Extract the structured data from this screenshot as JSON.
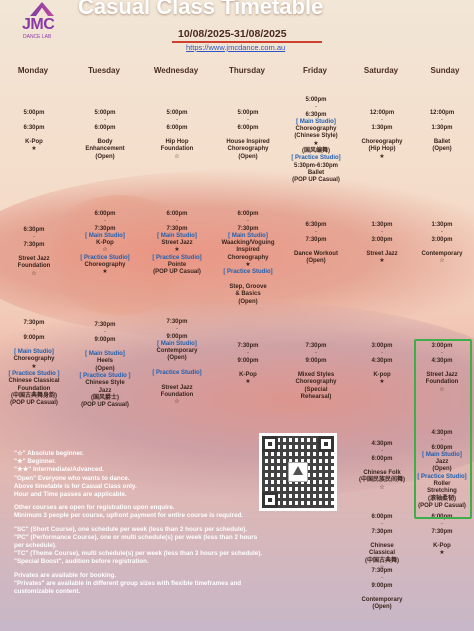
{
  "header": {
    "logo_text": "JMC",
    "logo_sub": "DANCE LAB",
    "title": "Casual Class Timetable",
    "date_range": "10/08/2025-31/08/2025",
    "url": "https://www.jmcdance.com.au"
  },
  "days": [
    "Monday",
    "Tuesday",
    "Wednesday",
    "Thursday",
    "Friday",
    "Saturday",
    "Sunday"
  ],
  "columns": [
    {
      "day": "Monday",
      "blocks": [
        {
          "lines": [
            [
              "t",
              "5:00pm"
            ],
            [
              "dash",
              "-"
            ],
            [
              "t",
              "6:30pm"
            ],
            [
              "g",
              ""
            ],
            [
              "cls",
              "K-Pop"
            ],
            [
              "sym",
              "★"
            ]
          ]
        },
        {
          "lines": [
            [
              "t",
              "6:30pm"
            ],
            [
              "dash",
              "-"
            ],
            [
              "t",
              "7:30pm"
            ],
            [
              "g",
              ""
            ],
            [
              "cls",
              "Street Jazz"
            ],
            [
              "cls",
              "Foundation"
            ],
            [
              "sym",
              "☆"
            ]
          ]
        },
        {
          "lines": [
            [
              "t",
              "7:30pm"
            ],
            [
              "dash",
              "-"
            ],
            [
              "t",
              "9:00pm"
            ],
            [
              "g",
              ""
            ],
            [
              "st",
              "[ Main Studio]"
            ],
            [
              "cls",
              "Choreography"
            ],
            [
              "sym",
              "★"
            ],
            [
              "st",
              "[ Practice Studio ]"
            ],
            [
              "cls",
              "Chinese Classical"
            ],
            [
              "cls",
              "Foundation"
            ],
            [
              "cls",
              "(中国古典舞身韵)"
            ],
            [
              "cls",
              "(POP UP Casual)"
            ]
          ]
        }
      ]
    },
    {
      "day": "Tuesday",
      "blocks": [
        {
          "lines": [
            [
              "t",
              "5:00pm"
            ],
            [
              "dash",
              "-"
            ],
            [
              "t",
              "6:00pm"
            ],
            [
              "g",
              ""
            ],
            [
              "cls",
              "Body"
            ],
            [
              "cls",
              "Enhancement"
            ],
            [
              "cls",
              "(Open)"
            ]
          ]
        },
        {
          "lines": [
            [
              "t",
              "6:00pm"
            ],
            [
              "dash",
              "-"
            ],
            [
              "t",
              "7:30pm"
            ],
            [
              "st",
              "[ Main Studio]"
            ],
            [
              "cls",
              "K-Pop"
            ],
            [
              "sym",
              "☆"
            ],
            [
              "st",
              "[ Practice Studio]"
            ],
            [
              "cls",
              "Choreography"
            ],
            [
              "sym",
              "★"
            ]
          ]
        },
        {
          "lines": [
            [
              "t",
              "7:30pm"
            ],
            [
              "dash",
              "-"
            ],
            [
              "t",
              "9:00pm"
            ],
            [
              "g",
              ""
            ],
            [
              "st",
              "[ Main Studio]"
            ],
            [
              "cls",
              "Heels"
            ],
            [
              "cls",
              "(Open)"
            ],
            [
              "st",
              "[ Practice Studio ]"
            ],
            [
              "cls",
              "Chinese Style"
            ],
            [
              "cls",
              "Jazz"
            ],
            [
              "cls",
              "(国风爵士)"
            ],
            [
              "cls",
              "(POP UP Casual)"
            ]
          ]
        }
      ]
    },
    {
      "day": "Wednesday",
      "blocks": [
        {
          "lines": [
            [
              "t",
              "5:00pm"
            ],
            [
              "dash",
              "-"
            ],
            [
              "t",
              "6:00pm"
            ],
            [
              "g",
              ""
            ],
            [
              "cls",
              "Hip Hop"
            ],
            [
              "cls",
              "Foundation"
            ],
            [
              "sym",
              "☆"
            ]
          ]
        },
        {
          "lines": [
            [
              "t",
              "6:00pm"
            ],
            [
              "dash",
              "-"
            ],
            [
              "t",
              "7:30pm"
            ],
            [
              "st",
              "[ Main Studio]"
            ],
            [
              "cls",
              "Street Jazz"
            ],
            [
              "sym",
              "★"
            ],
            [
              "st",
              "[ Practice Studio]"
            ],
            [
              "cls",
              "Pointe"
            ],
            [
              "cls",
              "(POP UP Casual)"
            ]
          ]
        },
        {
          "lines": [
            [
              "t",
              "7:30pm"
            ],
            [
              "dash",
              "-"
            ],
            [
              "t",
              "9:00pm"
            ],
            [
              "st",
              "[ Main Studio]"
            ],
            [
              "cls",
              "Contemporary"
            ],
            [
              "cls",
              "(Open)"
            ],
            [
              "g",
              ""
            ],
            [
              "st",
              "[ Practice Studio]"
            ],
            [
              "g",
              ""
            ],
            [
              "cls",
              "Street Jazz"
            ],
            [
              "cls",
              "Foundation"
            ],
            [
              "sym",
              "☆"
            ]
          ]
        }
      ]
    },
    {
      "day": "Thursday",
      "blocks": [
        {
          "lines": [
            [
              "t",
              "5:00pm"
            ],
            [
              "dash",
              "-"
            ],
            [
              "t",
              "6:00pm"
            ],
            [
              "g",
              ""
            ],
            [
              "cls",
              "House Inspired"
            ],
            [
              "cls",
              "Choreography"
            ],
            [
              "cls",
              "(Open)"
            ]
          ]
        },
        {
          "lines": [
            [
              "t",
              "6:00pm"
            ],
            [
              "dash",
              "-"
            ],
            [
              "t",
              "7:30pm"
            ],
            [
              "st",
              "[ Main Studio]"
            ],
            [
              "cls",
              "Waacking/Voguing"
            ],
            [
              "cls",
              "Inspired"
            ],
            [
              "cls",
              "Choreography"
            ],
            [
              "sym",
              "★"
            ],
            [
              "st",
              "[ Practice Studio]"
            ],
            [
              "g",
              ""
            ],
            [
              "cls",
              "Step,   Groove"
            ],
            [
              "cls",
              "& Basics"
            ],
            [
              "cls",
              "(Open)"
            ]
          ]
        },
        {
          "lines": [
            [
              "t",
              "7:30pm"
            ],
            [
              "dash",
              "-"
            ],
            [
              "t",
              "9:00pm"
            ],
            [
              "g",
              ""
            ],
            [
              "cls",
              "K-Pop"
            ],
            [
              "sym",
              "★"
            ]
          ]
        }
      ]
    },
    {
      "day": "Friday",
      "blocks": [
        {
          "lines": [
            [
              "t",
              "5:00pm"
            ],
            [
              "dash",
              "-"
            ],
            [
              "t",
              "6:30pm"
            ],
            [
              "st",
              "[ Main Studio]"
            ],
            [
              "cls",
              "Choreography"
            ],
            [
              "cls",
              "(Chinese Style)"
            ],
            [
              "sym",
              "★"
            ],
            [
              "cls",
              "(国风编舞)"
            ],
            [
              "st",
              "[ Practice Studio]"
            ],
            [
              "cls",
              "5:30pm-6:30pm"
            ],
            [
              "cls",
              "Ballet"
            ],
            [
              "cls",
              "(POP UP Casual)"
            ]
          ]
        },
        {
          "lines": [
            [
              "t",
              "6:30pm"
            ],
            [
              "dash",
              "-"
            ],
            [
              "t",
              "7:30pm"
            ],
            [
              "g",
              ""
            ],
            [
              "cls",
              "Dance Workout"
            ],
            [
              "cls",
              "(Open)"
            ]
          ]
        },
        {
          "lines": [
            [
              "t",
              "7:30pm"
            ],
            [
              "dash",
              "-"
            ],
            [
              "t",
              "9:00pm"
            ],
            [
              "g",
              ""
            ],
            [
              "cls",
              "Mixed Styles"
            ],
            [
              "cls",
              "Choreography"
            ],
            [
              "cls",
              "(Special"
            ],
            [
              "cls",
              "Rehearsal)"
            ]
          ]
        }
      ]
    },
    {
      "day": "Saturday",
      "blocks": [
        {
          "lines": [
            [
              "t",
              "12:00pm"
            ],
            [
              "dash",
              "-"
            ],
            [
              "t",
              "1:30pm"
            ],
            [
              "g",
              ""
            ],
            [
              "cls",
              "Choreography"
            ],
            [
              "cls",
              "(Hip Hop)"
            ],
            [
              "sym",
              "★"
            ]
          ]
        },
        {
          "lines": [
            [
              "t",
              "1:30pm"
            ],
            [
              "dash",
              "-"
            ],
            [
              "t",
              "3:00pm"
            ],
            [
              "g",
              ""
            ],
            [
              "cls",
              "Street Jazz"
            ],
            [
              "sym",
              "★"
            ]
          ]
        },
        {
          "lines": [
            [
              "t",
              "3:00pm"
            ],
            [
              "dash",
              "-"
            ],
            [
              "t",
              "4:30pm"
            ],
            [
              "g",
              ""
            ],
            [
              "cls",
              "K-pop"
            ],
            [
              "sym",
              "★"
            ]
          ]
        },
        {
          "lines": [
            [
              "t",
              "4:30pm"
            ],
            [
              "dash",
              "-"
            ],
            [
              "t",
              "6:00pm"
            ],
            [
              "g",
              ""
            ],
            [
              "cls",
              "Chinese Folk"
            ],
            [
              "cls",
              "(中国民族民间舞)"
            ],
            [
              "sym",
              "☆"
            ]
          ]
        },
        {
          "lines": [
            [
              "t",
              "6:00pm"
            ],
            [
              "dash",
              "-"
            ],
            [
              "t",
              "7:30pm"
            ],
            [
              "g",
              ""
            ],
            [
              "cls",
              "Chinese"
            ],
            [
              "cls",
              "Classical"
            ],
            [
              "cls",
              "(中国古典舞)"
            ],
            [
              "sym",
              "☆"
            ]
          ]
        },
        {
          "lines": [
            [
              "t",
              "7:30pm"
            ],
            [
              "dash",
              "-"
            ],
            [
              "t",
              "9:00pm"
            ],
            [
              "g",
              ""
            ],
            [
              "cls",
              "Contemporary"
            ],
            [
              "cls",
              "(Open)"
            ]
          ]
        }
      ]
    },
    {
      "day": "Sunday",
      "blocks": [
        {
          "lines": [
            [
              "t",
              "12:00pm"
            ],
            [
              "dash",
              "-"
            ],
            [
              "t",
              "1:30pm"
            ],
            [
              "g",
              ""
            ],
            [
              "cls",
              "Ballet"
            ],
            [
              "cls",
              "(Open)"
            ]
          ]
        },
        {
          "lines": [
            [
              "t",
              "1:30pm"
            ],
            [
              "dash",
              "-"
            ],
            [
              "t",
              "3:00pm"
            ],
            [
              "g",
              ""
            ],
            [
              "cls",
              "Contemporary"
            ],
            [
              "sym",
              "☆"
            ]
          ]
        },
        {
          "lines": [
            [
              "t",
              "3:00pm"
            ],
            [
              "dash",
              "-"
            ],
            [
              "t",
              "4:30pm"
            ],
            [
              "g",
              ""
            ],
            [
              "cls",
              "Street Jazz"
            ],
            [
              "cls",
              "Foundation"
            ],
            [
              "sym",
              "☆"
            ]
          ]
        },
        {
          "lines": [
            [
              "t",
              "4:30pm"
            ],
            [
              "dash",
              "-"
            ],
            [
              "t",
              "6:00pm"
            ],
            [
              "st",
              "[ Main Studio]"
            ],
            [
              "cls",
              "Jazz"
            ],
            [
              "cls",
              "(Open)"
            ],
            [
              "st",
              "[ Practice Studio]"
            ],
            [
              "cls",
              "Roller"
            ],
            [
              "cls",
              "Stretching"
            ],
            [
              "cls",
              "(滚轴柔韧)"
            ],
            [
              "cls",
              "(POP UP Casual)"
            ]
          ]
        },
        {
          "lines": [
            [
              "t",
              "6:00pm"
            ],
            [
              "dash",
              "-"
            ],
            [
              "t",
              "7:30pm"
            ],
            [
              "g",
              ""
            ],
            [
              "cls",
              "K-Pop"
            ],
            [
              "sym",
              "★"
            ]
          ]
        }
      ]
    }
  ],
  "legend": [
    "\"☆\" Absolute beginner.",
    "\"★\" Beginner.",
    "\"★★\" Intermediate/Advanced.",
    "\"Open\" Everyone who wants to dance.",
    "Above timetable is for Casual Class only.",
    "Hour and Time passes are applicable.",
    "",
    "Other courses are open for registration upon enquire.",
    "Minimum 3 people per course, upfront payment for entire course is required.",
    "",
    "\"SC\" (Short Course), one schedule per week (less than 2 hours per schedule).",
    "\"PC\" (Performance Course), one or multi schedule(s) per week (less than 2 hours per schedule).",
    "\"TC\" (Theme Course), multi schedule(s) per week (less than 3 hours per schedule).",
    "\"Special Boost\", audition before registration.",
    "",
    "Privates are available for booking.",
    "\"Privates\" are available in different group sizes with flexible timeframes and customizable content."
  ]
}
